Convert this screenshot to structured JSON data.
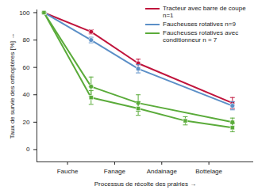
{
  "chart_data": {
    "type": "line",
    "x_label": "Processus de récolte des prairies",
    "y_label": "Taux de survie des orthoptères [%]",
    "xlim": [
      -0.15,
      4.45
    ],
    "xticks": [
      {
        "value": 0.5,
        "label": "Fauche"
      },
      {
        "value": 1.5,
        "label": "Fanage"
      },
      {
        "value": 2.5,
        "label": "Andainage"
      },
      {
        "value": 3.5,
        "label": "Bottelage"
      }
    ],
    "ylim": [
      -9,
      102
    ],
    "yticks": [
      0,
      20,
      40,
      60,
      80,
      100
    ],
    "legend": "top-right",
    "series": [
      {
        "name": "Tracteur avec barre de coupe n=1",
        "color": "#c0143c",
        "marker": "circle",
        "x": [
          0,
          1,
          2,
          4
        ],
        "values": [
          100,
          86,
          63,
          34
        ],
        "errors": [
          0,
          1.5,
          3,
          4
        ]
      },
      {
        "name": "Faucheuses rotatives n=9",
        "color": "#5b8fc7",
        "marker": "circle",
        "x": [
          0,
          1,
          2,
          4
        ],
        "values": [
          100,
          80,
          59,
          32
        ],
        "errors": [
          0,
          2,
          3,
          3
        ]
      },
      {
        "name": "Faucheuses rotatives avec conditionneur n = 7",
        "color": "#5aab3a",
        "marker": "circle",
        "x": [
          0,
          1,
          2,
          4
        ],
        "values": [
          100,
          46,
          34,
          20
        ],
        "errors": [
          0,
          7,
          6,
          3
        ]
      },
      {
        "name": "Faucheuses rotatives avec conditionneur n = 7",
        "color": "#5aab3a",
        "marker": "square",
        "x": [
          0,
          1,
          2,
          3,
          4
        ],
        "values": [
          100,
          38,
          30,
          21,
          16
        ],
        "errors": [
          0,
          5,
          5,
          3,
          3
        ]
      }
    ]
  }
}
